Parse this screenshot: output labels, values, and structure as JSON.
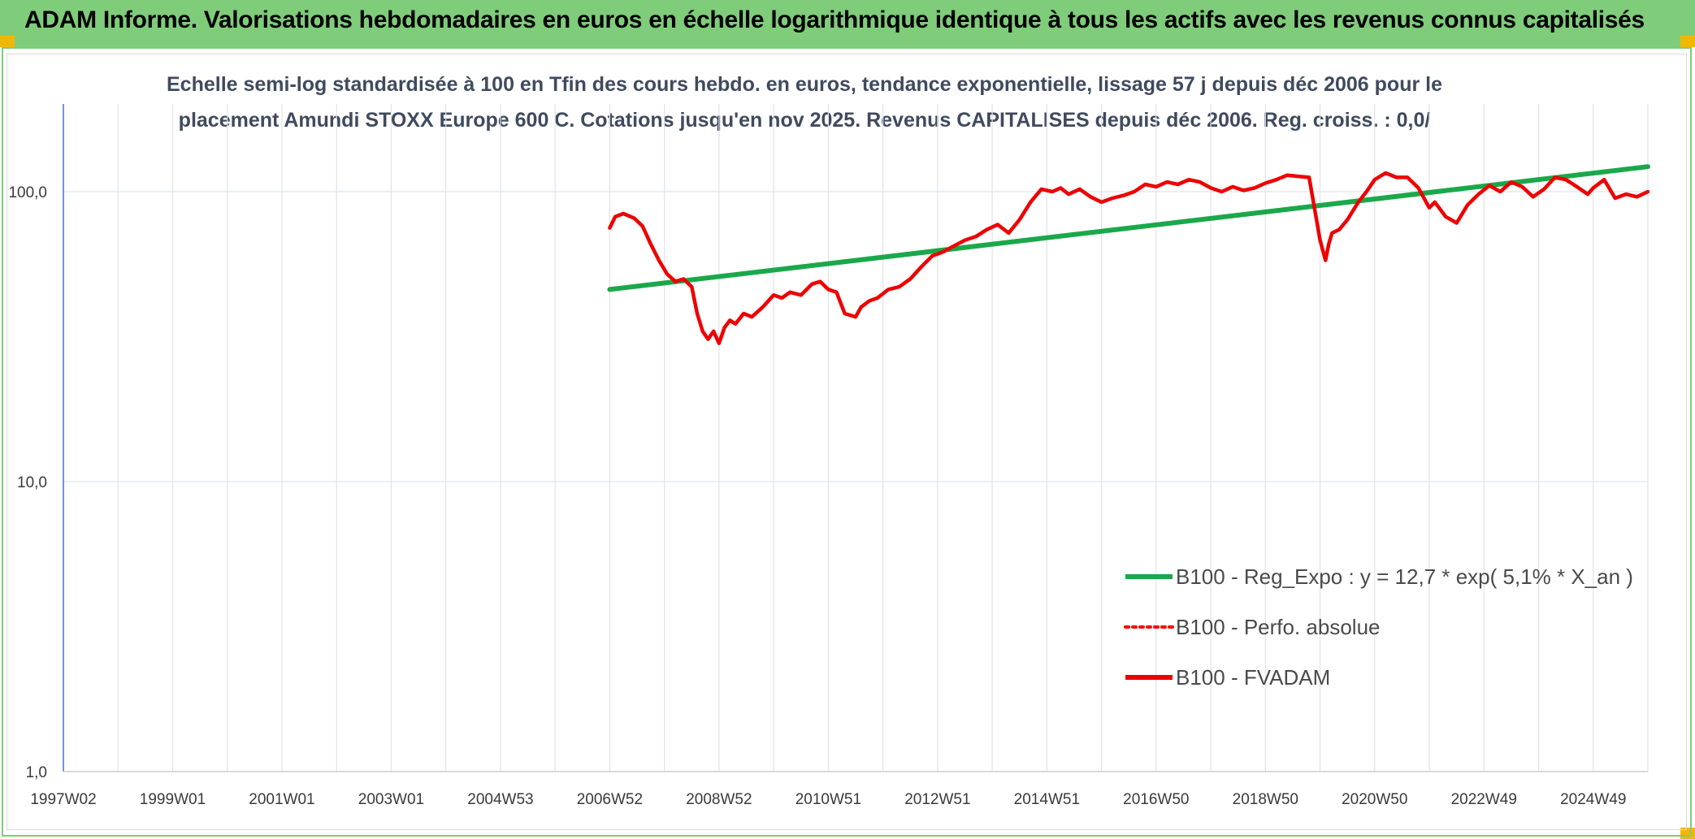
{
  "banner": {
    "title": "ADAM Informe. Valorisations hebdomadaires en euros en échelle logarithmique identique à tous les actifs avec les revenus connus capitalisés"
  },
  "chart_data": {
    "type": "line",
    "title_lines": [
      "Echelle semi-log standardisée à 100 en Tfin des cours hebdo. en euros, tendance exponentielle, lissage 57 j depuis déc 2006 pour le",
      "placement Amundi STOXX Europe 600 C. Cotations jusqu'en nov 2025. Revenus CAPITALISES depuis déc 2006. Reg. croiss. : 0,0/"
    ],
    "y_scale": "log",
    "ylim": [
      1,
      200
    ],
    "y_ticks": [
      {
        "value": 1,
        "label": "1,0"
      },
      {
        "value": 10,
        "label": "10,0"
      },
      {
        "value": 100,
        "label": "100,0"
      }
    ],
    "x_range": [
      1997.0,
      2026.0
    ],
    "x_ticks": [
      {
        "x": 1997.0,
        "label": "1997W02"
      },
      {
        "x": 1999.0,
        "label": "1999W01"
      },
      {
        "x": 2001.0,
        "label": "2001W01"
      },
      {
        "x": 2003.0,
        "label": "2003W01"
      },
      {
        "x": 2005.0,
        "label": "2004W53"
      },
      {
        "x": 2007.0,
        "label": "2006W52"
      },
      {
        "x": 2009.0,
        "label": "2008W52"
      },
      {
        "x": 2011.0,
        "label": "2010W51"
      },
      {
        "x": 2013.0,
        "label": "2012W51"
      },
      {
        "x": 2015.0,
        "label": "2014W51"
      },
      {
        "x": 2017.0,
        "label": "2016W50"
      },
      {
        "x": 2019.0,
        "label": "2018W50"
      },
      {
        "x": 2021.0,
        "label": "2020W50"
      },
      {
        "x": 2023.0,
        "label": "2022W49"
      },
      {
        "x": 2025.0,
        "label": "2024W49"
      }
    ],
    "grid": true,
    "legend_position": "bottom-right",
    "series": [
      {
        "name": "B100 - Reg_Expo : y = 12,7 * exp( 5,1% * X_an )",
        "color": "#1aa84a",
        "style": "solid",
        "x": [
          2007.0,
          2026.0
        ],
        "y": [
          46,
          122
        ]
      },
      {
        "name": "B100 - Perfo. absolue",
        "color": "#ff0000",
        "style": "dotted",
        "x": [],
        "y": []
      },
      {
        "name": "B100 - FVADAM",
        "color": "#ee0000",
        "style": "solid",
        "x": [
          2007.0,
          2007.1,
          2007.25,
          2007.45,
          2007.6,
          2007.75,
          2007.9,
          2008.05,
          2008.2,
          2008.35,
          2008.5,
          2008.6,
          2008.7,
          2008.8,
          2008.9,
          2009.0,
          2009.1,
          2009.2,
          2009.3,
          2009.45,
          2009.6,
          2009.8,
          2010.0,
          2010.15,
          2010.3,
          2010.5,
          2010.7,
          2010.85,
          2011.0,
          2011.15,
          2011.3,
          2011.5,
          2011.6,
          2011.75,
          2011.9,
          2012.1,
          2012.3,
          2012.5,
          2012.7,
          2012.9,
          2013.1,
          2013.3,
          2013.5,
          2013.7,
          2013.9,
          2014.1,
          2014.3,
          2014.5,
          2014.7,
          2014.9,
          2015.1,
          2015.25,
          2015.4,
          2015.6,
          2015.8,
          2016.0,
          2016.2,
          2016.4,
          2016.6,
          2016.8,
          2017.0,
          2017.2,
          2017.4,
          2017.6,
          2017.8,
          2018.0,
          2018.2,
          2018.4,
          2018.6,
          2018.8,
          2019.0,
          2019.2,
          2019.4,
          2019.6,
          2019.8,
          2020.0,
          2020.1,
          2020.16,
          2020.22,
          2020.35,
          2020.5,
          2020.7,
          2020.85,
          2021.0,
          2021.2,
          2021.4,
          2021.6,
          2021.8,
          2022.0,
          2022.1,
          2022.3,
          2022.5,
          2022.7,
          2022.9,
          2023.1,
          2023.3,
          2023.5,
          2023.7,
          2023.9,
          2024.1,
          2024.3,
          2024.5,
          2024.7,
          2024.9,
          2025.0,
          2025.2,
          2025.4,
          2025.6,
          2025.8,
          2026.0
        ],
        "y": [
          75,
          82,
          84,
          81,
          76,
          66,
          58,
          52,
          49,
          50,
          47,
          38,
          33,
          31,
          33,
          30,
          34,
          36,
          35,
          38,
          37,
          40,
          44,
          43,
          45,
          44,
          48,
          49,
          46,
          45,
          38,
          37,
          40,
          42,
          43,
          46,
          47,
          50,
          55,
          60,
          62,
          65,
          68,
          70,
          74,
          77,
          72,
          80,
          92,
          102,
          100,
          103,
          98,
          102,
          96,
          92,
          95,
          97,
          100,
          106,
          104,
          108,
          106,
          110,
          108,
          103,
          100,
          104,
          101,
          103,
          107,
          110,
          114,
          113,
          112,
          68,
          58,
          66,
          72,
          74,
          80,
          92,
          100,
          110,
          116,
          112,
          112,
          103,
          88,
          92,
          82,
          78,
          90,
          98,
          105,
          100,
          108,
          104,
          96,
          102,
          112,
          110,
          104,
          98,
          103,
          110,
          95,
          98,
          96,
          100
        ]
      }
    ]
  }
}
